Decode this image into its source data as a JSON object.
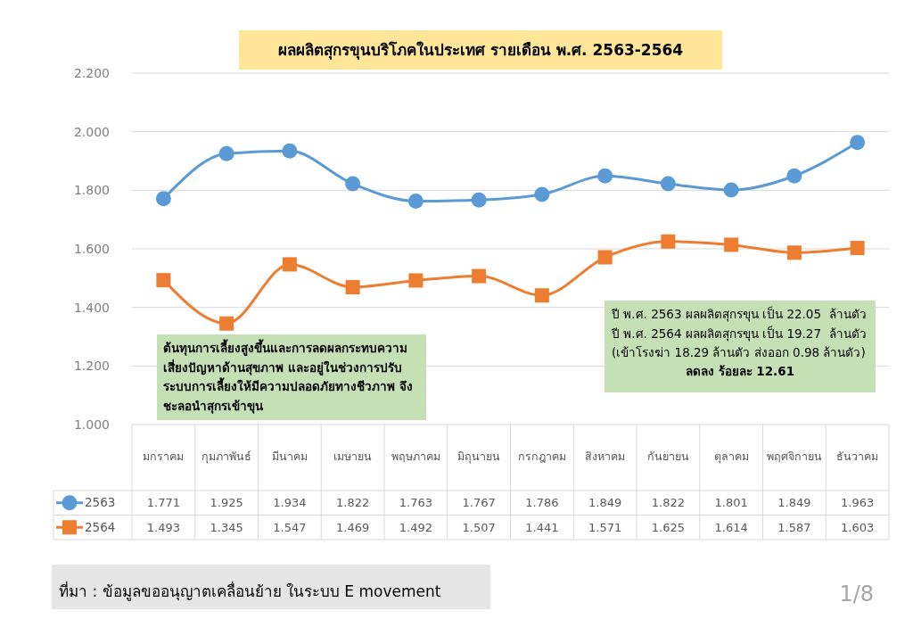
{
  "chart_data": {
    "type": "line",
    "title": "ผลผลิตสุกรขุนบริโภคในประเทศ รายเดือน พ.ศ. 2563-2564",
    "categories": [
      "มกราคม",
      "กุมภาพันธ์",
      "มีนาคม",
      "เมษายน",
      "พฤษภาคม",
      "มิถุนายน",
      "กรกฎาคม",
      "สิงหาคม",
      "กันยายน",
      "ตุลาคม",
      "พฤศจิกายน",
      "ธันวาคม"
    ],
    "series": [
      {
        "name": "2563",
        "color": "#5b9bd5",
        "marker": "circle",
        "values": [
          1.771,
          1.925,
          1.934,
          1.822,
          1.763,
          1.767,
          1.786,
          1.849,
          1.822,
          1.801,
          1.849,
          1.963
        ]
      },
      {
        "name": "2564",
        "color": "#ed7d31",
        "marker": "square",
        "values": [
          1.493,
          1.345,
          1.547,
          1.469,
          1.492,
          1.507,
          1.441,
          1.571,
          1.625,
          1.614,
          1.587,
          1.603
        ]
      }
    ],
    "ylim": [
      1,
      2.2
    ],
    "yticks": [
      {
        "value": 1,
        "label": "1.000"
      },
      {
        "value": 1.2,
        "label": "1.200"
      },
      {
        "value": 1.4,
        "label": "1.400"
      },
      {
        "value": 1.6,
        "label": "1.600"
      },
      {
        "value": 1.8,
        "label": "1.800"
      },
      {
        "value": 2,
        "label": "2.000"
      },
      {
        "value": 2.2,
        "label": "2.200"
      }
    ],
    "grid": "y",
    "legend": "bottom",
    "data_labels": true,
    "annotations": [
      "ต้นทุนการเลี้ยงสูงขึ้นและการลดผลกระทบความ\nเสี่ยงปัญหาด้านสุขภาพ และอยู่ในช่วงการปรับ\nระบบการเลี้ยงให้มีความปลอดภัยทางชีวภาพ จึง\nชะลอนำสุกรเข้าขุน",
      "ปี พ.ศ. 2563 ผลผลิตสุกรขุน เป็น 22.05  ล้านตัว\nปี พ.ศ. 2564 ผลผลิตสุกรขุน เป็น 19.27  ล้านตัว\n(เข้าโรงฆ่า 18.29 ล้านตัว ส่งออก 0.98 ล้านตัว)",
      "ลดลง ร้อยละ 12.61",
      "ที่มา : ข้อมูลขออนุญาตเคลื่อนย้าย ในระบบ E movement",
      "1/8"
    ]
  }
}
